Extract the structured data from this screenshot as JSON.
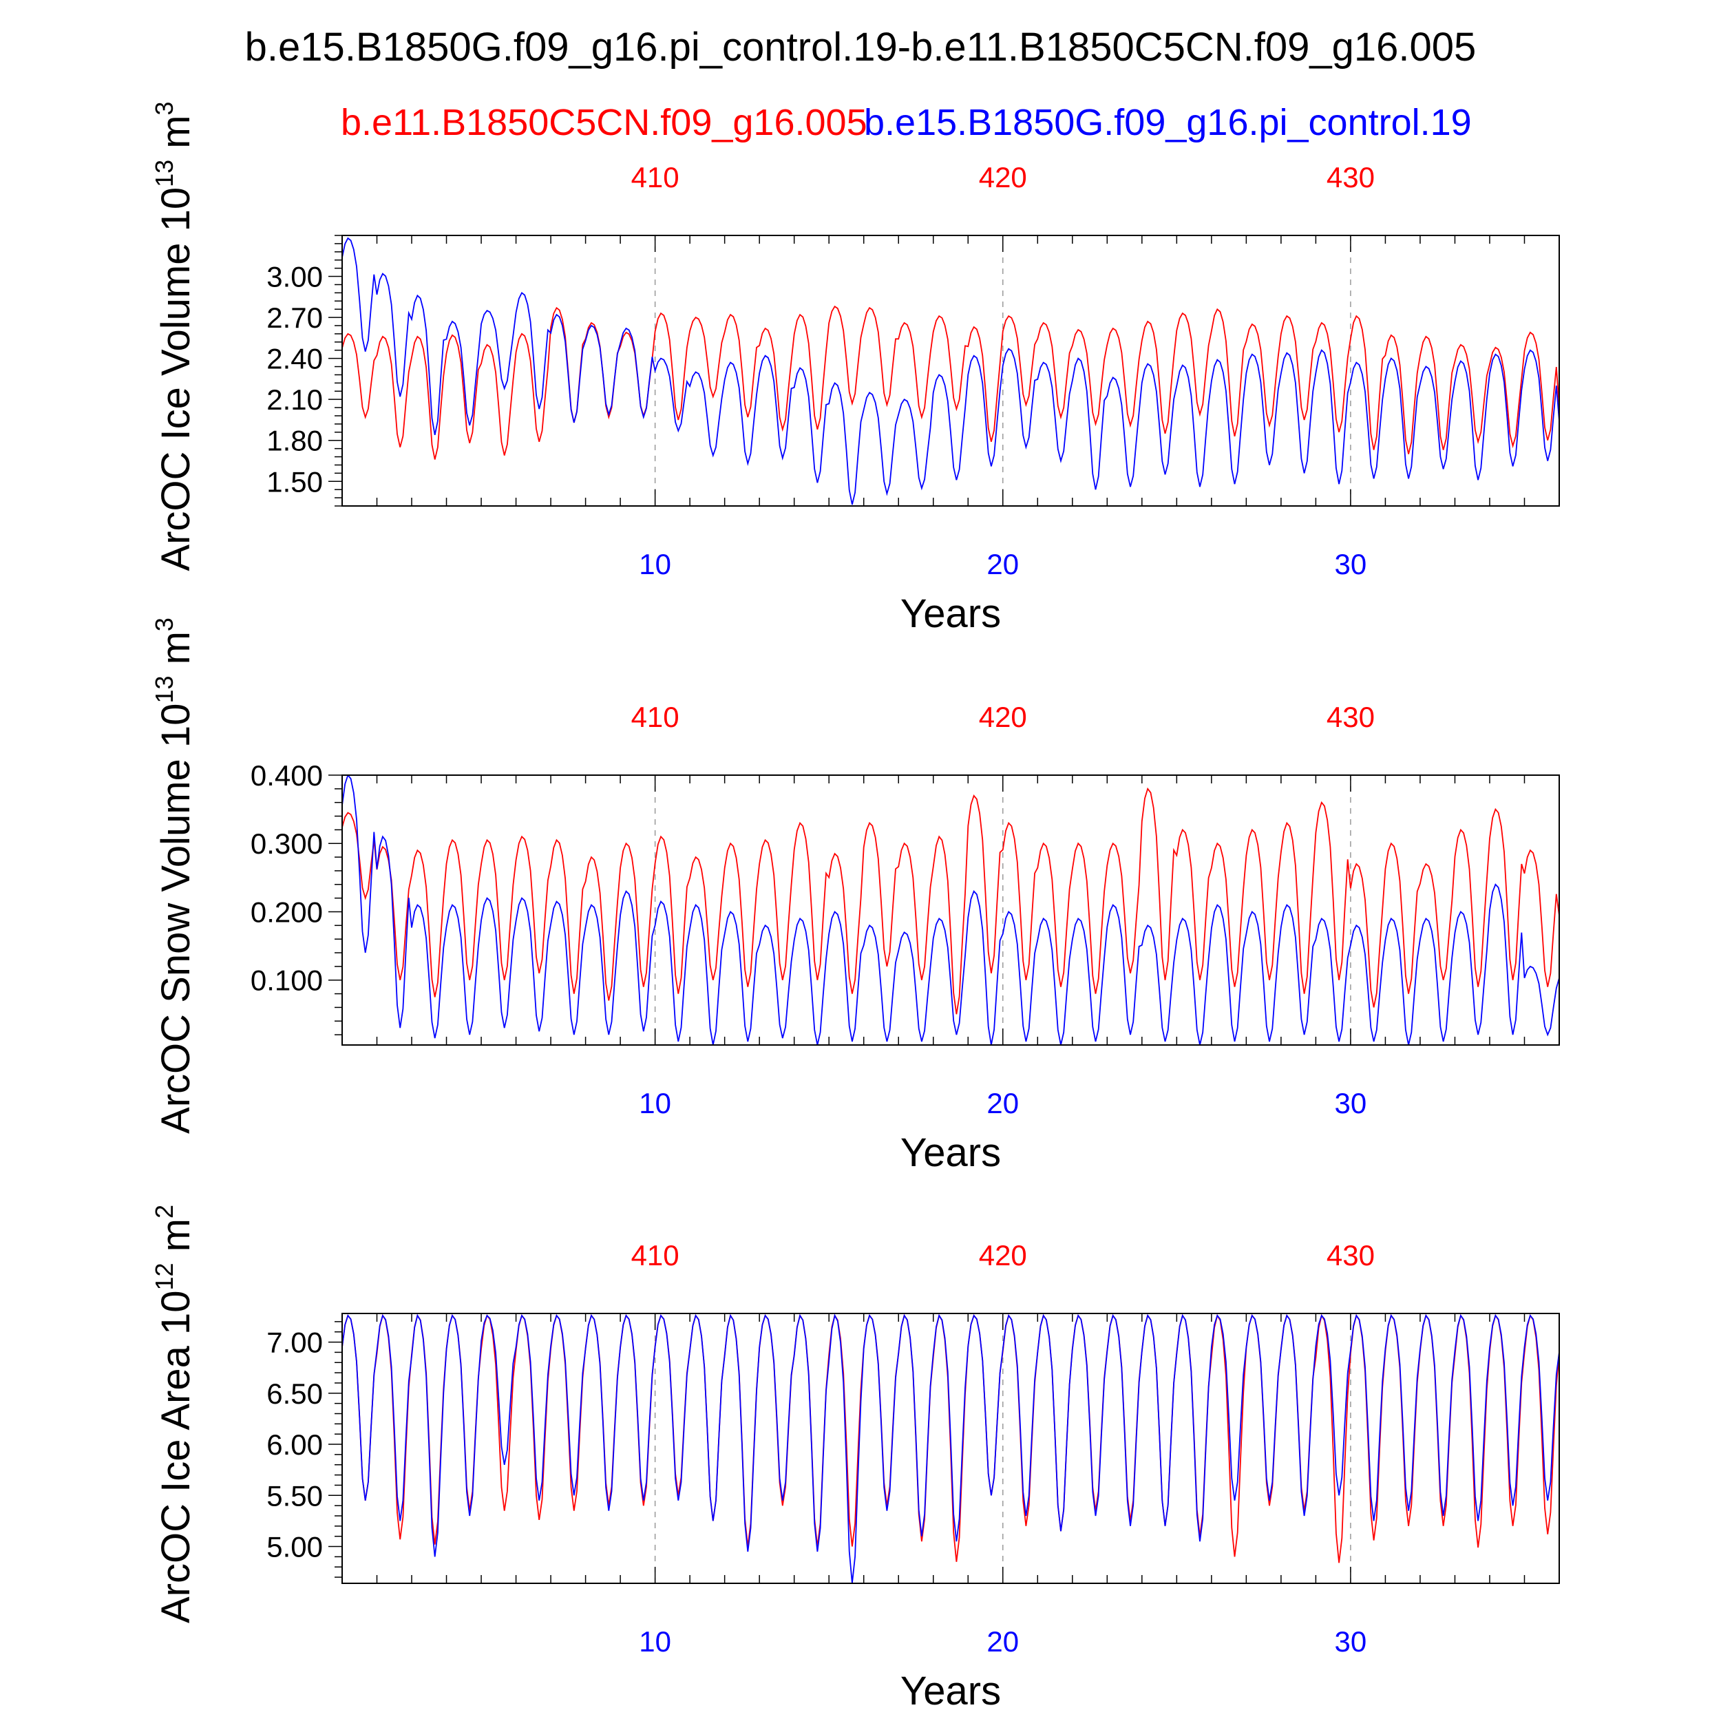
{
  "title": "b.e15.B1850G.f09_g16.pi_control.19-b.e11.B1850C5CN.f09_g16.005",
  "legend": {
    "red": "b.e11.B1850C5CN.f09_g16.005",
    "blue": "b.e15.B1850G.f09_g16.pi_control.19"
  },
  "colors": {
    "red": "#ff0000",
    "blue": "#0000ff",
    "axis": "#000000",
    "grid": "#999999"
  },
  "chart_data": [
    {
      "type": "line",
      "ylabel": "ArcOC Ice Volume 10",
      "ylabel_sup": "13",
      "ylabel_unit": " m",
      "ylabel_unit_sup": "3",
      "xlabel": "Years",
      "xlim": [
        1,
        36
      ],
      "ylim": [
        1.32,
        3.3
      ],
      "yticks": [
        "1.50",
        "1.80",
        "2.10",
        "2.40",
        "2.70",
        "3.00"
      ],
      "top_xticks": [
        "410",
        "420",
        "430"
      ],
      "bottom_xticks": [
        "10",
        "20",
        "30"
      ],
      "series": [
        {
          "color_key": "red",
          "annual": [
            [
              1.97,
              2.58
            ],
            [
              1.75,
              2.56
            ],
            [
              1.66,
              2.56
            ],
            [
              1.78,
              2.57
            ],
            [
              1.69,
              2.5
            ],
            [
              1.79,
              2.58
            ],
            [
              1.93,
              2.77
            ],
            [
              1.97,
              2.66
            ],
            [
              1.98,
              2.59
            ],
            [
              1.95,
              2.73
            ],
            [
              2.12,
              2.7
            ],
            [
              1.97,
              2.72
            ],
            [
              1.88,
              2.62
            ],
            [
              1.88,
              2.72
            ],
            [
              2.07,
              2.78
            ],
            [
              2.06,
              2.77
            ],
            [
              1.97,
              2.66
            ],
            [
              2.03,
              2.71
            ],
            [
              1.79,
              2.63
            ],
            [
              2.06,
              2.71
            ],
            [
              1.97,
              2.66
            ],
            [
              1.92,
              2.61
            ],
            [
              1.91,
              2.62
            ],
            [
              1.85,
              2.67
            ],
            [
              1.99,
              2.73
            ],
            [
              1.83,
              2.76
            ],
            [
              1.91,
              2.65
            ],
            [
              1.95,
              2.71
            ],
            [
              1.86,
              2.66
            ],
            [
              1.73,
              2.71
            ],
            [
              1.7,
              2.57
            ],
            [
              1.73,
              2.56
            ],
            [
              1.79,
              2.5
            ],
            [
              1.76,
              2.48
            ],
            [
              1.8,
              2.59
            ],
            [
              1.83,
              2.09
            ]
          ]
        },
        {
          "color_key": "blue",
          "annual": [
            [
              2.45,
              3.28
            ],
            [
              2.12,
              3.02
            ],
            [
              1.84,
              2.86
            ],
            [
              1.91,
              2.67
            ],
            [
              2.18,
              2.75
            ],
            [
              2.03,
              2.88
            ],
            [
              1.93,
              2.72
            ],
            [
              1.99,
              2.64
            ],
            [
              1.97,
              2.62
            ],
            [
              1.87,
              2.4
            ],
            [
              1.69,
              2.3
            ],
            [
              1.63,
              2.37
            ],
            [
              1.67,
              2.42
            ],
            [
              1.49,
              2.33
            ],
            [
              1.33,
              2.22
            ],
            [
              1.41,
              2.15
            ],
            [
              1.45,
              2.1
            ],
            [
              1.51,
              2.28
            ],
            [
              1.61,
              2.42
            ],
            [
              1.75,
              2.47
            ],
            [
              1.65,
              2.37
            ],
            [
              1.44,
              2.4
            ],
            [
              1.46,
              2.26
            ],
            [
              1.55,
              2.36
            ],
            [
              1.46,
              2.35
            ],
            [
              1.48,
              2.39
            ],
            [
              1.62,
              2.43
            ],
            [
              1.56,
              2.44
            ],
            [
              1.48,
              2.46
            ],
            [
              1.52,
              2.37
            ],
            [
              1.52,
              2.4
            ],
            [
              1.59,
              2.34
            ],
            [
              1.51,
              2.38
            ],
            [
              1.61,
              2.43
            ],
            [
              1.65,
              2.46
            ],
            [
              1.67,
              2.0
            ]
          ]
        }
      ]
    },
    {
      "type": "line",
      "ylabel": "ArcOC Snow Volume 10",
      "ylabel_sup": "13",
      "ylabel_unit": " m",
      "ylabel_unit_sup": "3",
      "xlabel": "Years",
      "xlim": [
        1,
        36
      ],
      "ylim": [
        0.005,
        0.4
      ],
      "yticks": [
        "0.100",
        "0.200",
        "0.300",
        "0.400"
      ],
      "top_xticks": [
        "410",
        "420",
        "430"
      ],
      "bottom_xticks": [
        "10",
        "20",
        "30"
      ],
      "series": [
        {
          "color_key": "red",
          "annual": [
            [
              0.22,
              0.345
            ],
            [
              0.1,
              0.295
            ],
            [
              0.075,
              0.29
            ],
            [
              0.1,
              0.305
            ],
            [
              0.1,
              0.305
            ],
            [
              0.11,
              0.31
            ],
            [
              0.08,
              0.305
            ],
            [
              0.07,
              0.28
            ],
            [
              0.09,
              0.3
            ],
            [
              0.08,
              0.31
            ],
            [
              0.1,
              0.28
            ],
            [
              0.09,
              0.3
            ],
            [
              0.1,
              0.305
            ],
            [
              0.1,
              0.33
            ],
            [
              0.08,
              0.285
            ],
            [
              0.12,
              0.33
            ],
            [
              0.1,
              0.3
            ],
            [
              0.05,
              0.31
            ],
            [
              0.11,
              0.37
            ],
            [
              0.1,
              0.33
            ],
            [
              0.09,
              0.3
            ],
            [
              0.08,
              0.3
            ],
            [
              0.11,
              0.3
            ],
            [
              0.1,
              0.38
            ],
            [
              0.1,
              0.32
            ],
            [
              0.09,
              0.3
            ],
            [
              0.1,
              0.32
            ],
            [
              0.08,
              0.33
            ],
            [
              0.1,
              0.36
            ],
            [
              0.06,
              0.27
            ],
            [
              0.08,
              0.3
            ],
            [
              0.1,
              0.27
            ],
            [
              0.09,
              0.32
            ],
            [
              0.1,
              0.35
            ],
            [
              0.09,
              0.29
            ],
            [
              0.12,
              0.21
            ]
          ]
        },
        {
          "color_key": "blue",
          "annual": [
            [
              0.14,
              0.4
            ],
            [
              0.03,
              0.31
            ],
            [
              0.015,
              0.21
            ],
            [
              0.02,
              0.21
            ],
            [
              0.03,
              0.22
            ],
            [
              0.025,
              0.22
            ],
            [
              0.02,
              0.215
            ],
            [
              0.02,
              0.21
            ],
            [
              0.025,
              0.23
            ],
            [
              0.01,
              0.215
            ],
            [
              0.005,
              0.21
            ],
            [
              0.01,
              0.2
            ],
            [
              0.015,
              0.18
            ],
            [
              0.005,
              0.19
            ],
            [
              0.01,
              0.2
            ],
            [
              0.01,
              0.18
            ],
            [
              0.01,
              0.17
            ],
            [
              0.02,
              0.19
            ],
            [
              0.005,
              0.23
            ],
            [
              0.01,
              0.2
            ],
            [
              0.005,
              0.19
            ],
            [
              0.01,
              0.19
            ],
            [
              0.02,
              0.21
            ],
            [
              0.01,
              0.18
            ],
            [
              0.005,
              0.19
            ],
            [
              0.01,
              0.21
            ],
            [
              0.01,
              0.2
            ],
            [
              0.02,
              0.21
            ],
            [
              0.01,
              0.19
            ],
            [
              0.01,
              0.18
            ],
            [
              0.005,
              0.19
            ],
            [
              0.01,
              0.19
            ],
            [
              0.02,
              0.2
            ],
            [
              0.02,
              0.24
            ],
            [
              0.02,
              0.12
            ],
            [
              0.02,
              0.12
            ]
          ]
        }
      ]
    },
    {
      "type": "line",
      "ylabel": "ArcOC Ice Area 10",
      "ylabel_sup": "12",
      "ylabel_unit": " m",
      "ylabel_unit_sup": "2",
      "xlabel": "Years",
      "xlim": [
        1,
        36
      ],
      "ylim": [
        4.64,
        7.28
      ],
      "yticks": [
        "5.00",
        "5.50",
        "6.00",
        "6.50",
        "7.00"
      ],
      "top_xticks": [
        "410",
        "420",
        "430"
      ],
      "bottom_xticks": [
        "10",
        "20",
        "30"
      ],
      "series": [
        {
          "color_key": "red",
          "annual": [
            [
              5.45,
              7.26
            ],
            [
              5.07,
              7.26
            ],
            [
              5.02,
              7.26
            ],
            [
              5.35,
              7.26
            ],
            [
              5.35,
              7.26
            ],
            [
              5.26,
              7.26
            ],
            [
              5.35,
              7.26
            ],
            [
              5.4,
              7.26
            ],
            [
              5.4,
              7.26
            ],
            [
              5.5,
              7.26
            ],
            [
              5.25,
              7.26
            ],
            [
              5.0,
              7.26
            ],
            [
              5.4,
              7.26
            ],
            [
              5.0,
              7.26
            ],
            [
              5.0,
              7.26
            ],
            [
              5.4,
              7.26
            ],
            [
              5.05,
              7.26
            ],
            [
              4.85,
              7.26
            ],
            [
              5.5,
              7.26
            ],
            [
              5.2,
              7.26
            ],
            [
              5.15,
              7.26
            ],
            [
              5.35,
              7.26
            ],
            [
              5.25,
              7.26
            ],
            [
              5.2,
              7.26
            ],
            [
              5.1,
              7.26
            ],
            [
              4.9,
              7.26
            ],
            [
              5.4,
              7.26
            ],
            [
              5.35,
              7.26
            ],
            [
              4.84,
              7.26
            ],
            [
              5.06,
              7.26
            ],
            [
              5.2,
              7.26
            ],
            [
              5.2,
              7.26
            ],
            [
              4.99,
              7.26
            ],
            [
              5.2,
              7.26
            ],
            [
              5.12,
              7.26
            ],
            [
              5.3,
              7.2
            ]
          ]
        },
        {
          "color_key": "blue",
          "annual": [
            [
              5.45,
              7.26
            ],
            [
              5.25,
              7.26
            ],
            [
              4.9,
              7.26
            ],
            [
              5.3,
              7.26
            ],
            [
              5.8,
              7.26
            ],
            [
              5.45,
              7.26
            ],
            [
              5.5,
              7.26
            ],
            [
              5.35,
              7.26
            ],
            [
              5.45,
              7.26
            ],
            [
              5.45,
              7.26
            ],
            [
              5.25,
              7.26
            ],
            [
              4.95,
              7.26
            ],
            [
              5.45,
              7.26
            ],
            [
              4.95,
              7.26
            ],
            [
              4.64,
              7.26
            ],
            [
              5.35,
              7.26
            ],
            [
              5.1,
              7.26
            ],
            [
              5.05,
              7.26
            ],
            [
              5.5,
              7.26
            ],
            [
              5.3,
              7.26
            ],
            [
              5.15,
              7.26
            ],
            [
              5.3,
              7.26
            ],
            [
              5.2,
              7.26
            ],
            [
              5.2,
              7.26
            ],
            [
              5.05,
              7.26
            ],
            [
              5.45,
              7.26
            ],
            [
              5.45,
              7.26
            ],
            [
              5.3,
              7.26
            ],
            [
              5.5,
              7.26
            ],
            [
              5.25,
              7.26
            ],
            [
              5.35,
              7.26
            ],
            [
              5.3,
              7.26
            ],
            [
              5.25,
              7.26
            ],
            [
              5.4,
              7.26
            ],
            [
              5.45,
              7.26
            ],
            [
              5.45,
              7.2
            ]
          ]
        }
      ]
    }
  ]
}
